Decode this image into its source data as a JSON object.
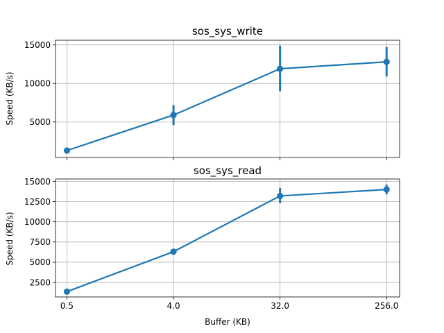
{
  "chart_data": [
    {
      "type": "line",
      "title": "sos_sys_write",
      "xlabel": "",
      "ylabel": "Speed (KB/s)",
      "x_scale": "log2",
      "categories": [
        "0.5",
        "4.0",
        "32.0",
        "256.0"
      ],
      "x": [
        0.5,
        4.0,
        32.0,
        256.0
      ],
      "xlim": [
        0.4,
        330
      ],
      "ylim": [
        400,
        15600
      ],
      "yticks": [
        5000,
        10000,
        15000
      ],
      "ytick_labels": [
        "5000",
        "10000",
        "15000"
      ],
      "xtick_labels_visible": false,
      "grid": true,
      "color": "#1f77b4",
      "series": [
        {
          "values": [
            1300,
            5900,
            11900,
            12800
          ],
          "error_low": [
            1300,
            4600,
            9000,
            10900
          ],
          "error_high": [
            1300,
            7200,
            14900,
            14700
          ]
        }
      ]
    },
    {
      "type": "line",
      "title": "sos_sys_read",
      "xlabel": "Buffer (KB)",
      "ylabel": "Speed (KB/s)",
      "x_scale": "log2",
      "categories": [
        "0.5",
        "4.0",
        "32.0",
        "256.0"
      ],
      "x": [
        0.5,
        4.0,
        32.0,
        256.0
      ],
      "xlim": [
        0.4,
        330
      ],
      "ylim": [
        700,
        15300
      ],
      "yticks": [
        2500,
        5000,
        7500,
        10000,
        12500,
        15000
      ],
      "ytick_labels": [
        "2500",
        "5000",
        "7500",
        "10000",
        "12500",
        "15000"
      ],
      "xtick_labels_visible": true,
      "grid": true,
      "color": "#1f77b4",
      "series": [
        {
          "values": [
            1350,
            6300,
            13200,
            14000
          ],
          "error_low": [
            1350,
            6300,
            12300,
            13400
          ],
          "error_high": [
            1350,
            6300,
            14200,
            14600
          ]
        }
      ]
    }
  ]
}
